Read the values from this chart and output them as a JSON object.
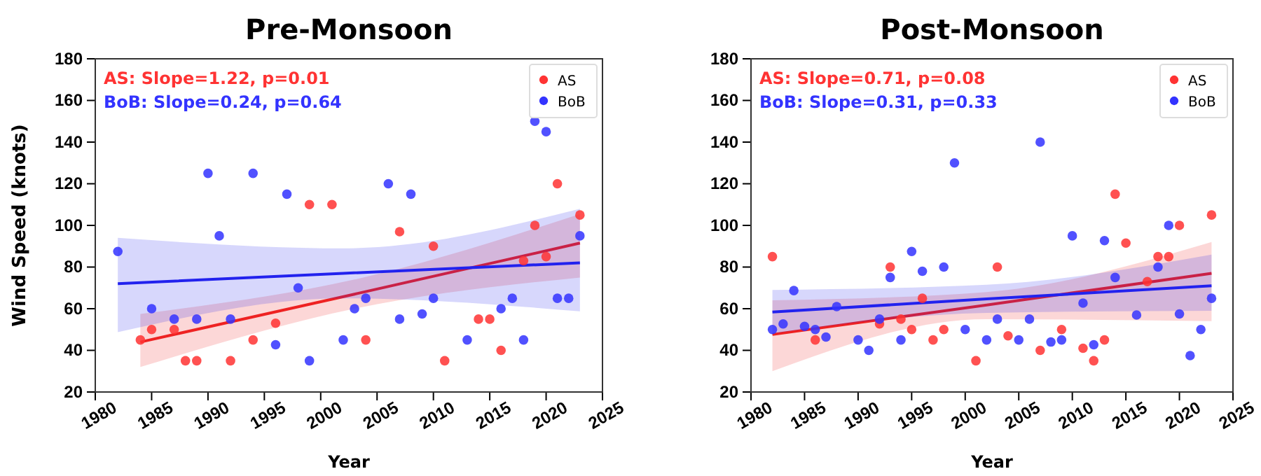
{
  "chart_data": [
    {
      "type": "scatter",
      "title": "Pre-Monsoon",
      "xlabel": "Year",
      "ylabel": "Wind Speed (knots)",
      "xlim": [
        1980,
        2025
      ],
      "xticks": [
        1980,
        1985,
        1990,
        1995,
        2000,
        2005,
        2010,
        2015,
        2020,
        2025
      ],
      "ylim": [
        20,
        180
      ],
      "yticks": [
        20,
        40,
        60,
        80,
        100,
        120,
        140,
        160,
        180
      ],
      "grid": false,
      "legend": "top right",
      "marker": "circle",
      "annotations": [
        "AS: Slope=1.22, p=0.01",
        "BoB: Slope=0.24, p=0.64"
      ],
      "series": [
        {
          "type": "line",
          "marker": "none",
          "color": "#ee2222",
          "x": [
            1984,
            2003,
            2023
          ],
          "values": [
            44,
            67,
            91.5
          ],
          "lower": [
            32,
            60,
            75
          ],
          "upper": [
            57.5,
            74,
            105.5
          ]
        },
        {
          "type": "line",
          "marker": "none",
          "color": "#2222ee",
          "x": [
            1982,
            2002,
            2023
          ],
          "values": [
            72,
            77,
            82
          ],
          "lower": [
            48.7,
            65,
            58.7
          ],
          "upper": [
            94,
            89,
            108
          ]
        },
        {
          "name": "AS",
          "color": "#ff3333",
          "x": [
            1984,
            1985,
            1987,
            1988,
            1989,
            1992,
            1994,
            1996,
            1999,
            2001,
            2004,
            2007,
            2010,
            2011,
            2014,
            2015,
            2016,
            2018,
            2019,
            2020,
            2021,
            2023
          ],
          "values": [
            45,
            50,
            50,
            35,
            35,
            35,
            45,
            53,
            110,
            110,
            45,
            97,
            90,
            35,
            55,
            55,
            40,
            83,
            100,
            85,
            120,
            105
          ]
        },
        {
          "name": "BoB",
          "color": "#3333ff",
          "x": [
            1982,
            1985,
            1987,
            1989,
            1990,
            1991,
            1992,
            1994,
            1996,
            1997,
            1998,
            1999,
            2002,
            2003,
            2004,
            2006,
            2007,
            2008,
            2009,
            2010,
            2013,
            2016,
            2017,
            2018,
            2019,
            2020,
            2021,
            2022,
            2023
          ],
          "values": [
            87.5,
            60,
            55,
            55,
            125,
            95,
            55,
            125,
            42.7,
            115,
            70,
            35,
            45,
            60,
            65,
            120,
            55,
            115,
            57.5,
            65,
            45,
            60,
            65,
            45,
            150,
            145,
            65,
            65,
            95
          ]
        }
      ]
    },
    {
      "type": "scatter",
      "title": "Post-Monsoon",
      "xlabel": "Year",
      "xlim": [
        1980,
        2025
      ],
      "xticks": [
        1980,
        1985,
        1990,
        1995,
        2000,
        2005,
        2010,
        2015,
        2020,
        2025
      ],
      "ylim": [
        20,
        180
      ],
      "yticks": [
        20,
        40,
        60,
        80,
        100,
        120,
        140,
        160,
        180
      ],
      "grid": false,
      "legend": "top right",
      "marker": "circle",
      "annotations": [
        "AS: Slope=0.71, p=0.08",
        "BoB: Slope=0.31, p=0.33"
      ],
      "series": [
        {
          "type": "line",
          "marker": "none",
          "color": "#ee2222",
          "x": [
            1982,
            2002,
            2023
          ],
          "values": [
            47.6,
            61.8,
            77
          ],
          "lower": [
            30,
            55,
            54
          ],
          "upper": [
            64,
            68,
            92
          ]
        },
        {
          "type": "line",
          "marker": "none",
          "color": "#2222ee",
          "x": [
            1982,
            2002,
            2023
          ],
          "values": [
            58.4,
            64.7,
            71
          ],
          "lower": [
            48,
            58,
            59
          ],
          "upper": [
            69,
            71.5,
            86
          ]
        },
        {
          "name": "AS",
          "color": "#ff3333",
          "x": [
            1982,
            1986,
            1992,
            1993,
            1994,
            1995,
            1996,
            1997,
            1998,
            2001,
            2003,
            2004,
            2007,
            2009,
            2011,
            2012,
            2013,
            2014,
            2015,
            2017,
            2018,
            2019,
            2020,
            2023
          ],
          "values": [
            85,
            45,
            52.7,
            80,
            55,
            50,
            65,
            45,
            50,
            35,
            80,
            47,
            40,
            50,
            41,
            35,
            45,
            115,
            91.5,
            73,
            85,
            85,
            100,
            105
          ]
        },
        {
          "name": "BoB",
          "color": "#3333ff",
          "x": [
            1982,
            1983,
            1984,
            1985,
            1986,
            1987,
            1988,
            1990,
            1991,
            1992,
            1993,
            1994,
            1995,
            1996,
            1998,
            1999,
            2000,
            2002,
            2003,
            2005,
            2006,
            2007,
            2008,
            2009,
            2010,
            2011,
            2012,
            2013,
            2014,
            2016,
            2018,
            2019,
            2020,
            2021,
            2022,
            2023
          ],
          "values": [
            50,
            52.7,
            68.7,
            51.5,
            50,
            46.4,
            61,
            45,
            40,
            55,
            75,
            45,
            87.5,
            78,
            80,
            130,
            50,
            45,
            55,
            45,
            55,
            140,
            44,
            45,
            95,
            62.7,
            42.7,
            92.7,
            75,
            57,
            80,
            100,
            57.5,
            37.5,
            50,
            65
          ]
        }
      ]
    }
  ]
}
